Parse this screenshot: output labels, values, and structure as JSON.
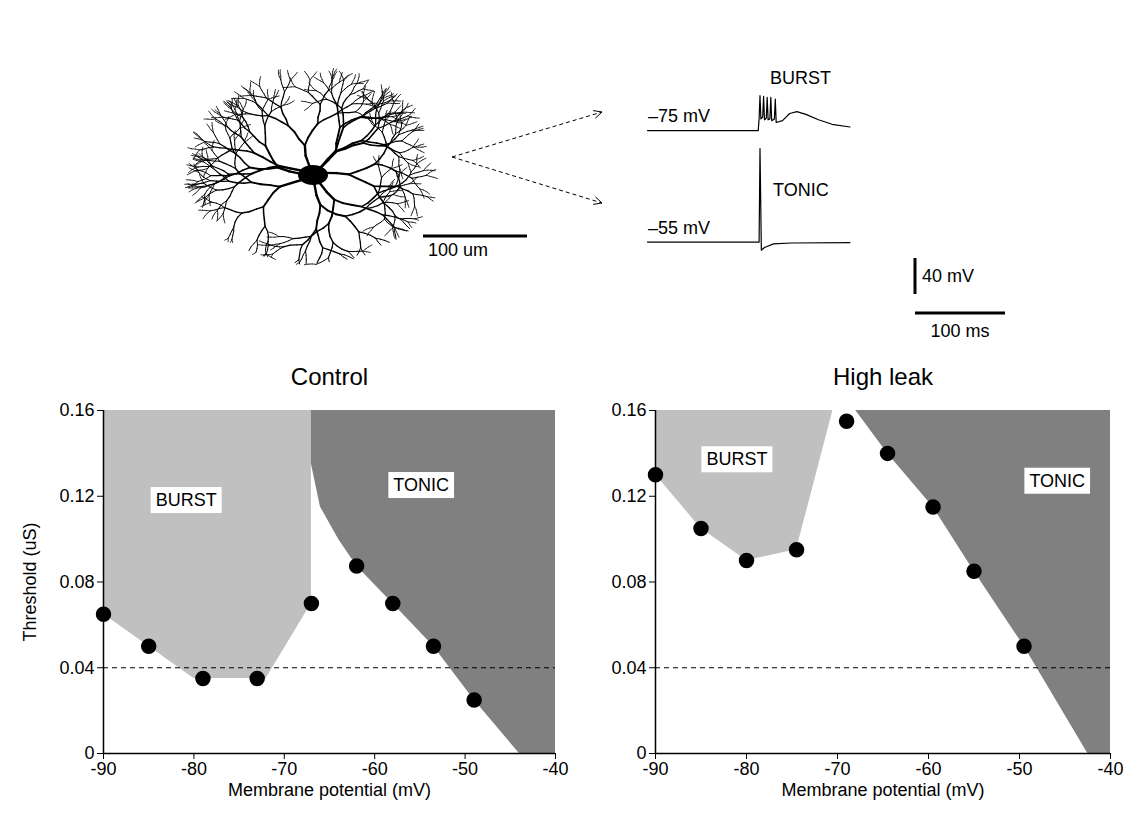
{
  "figure": {
    "neuron": {
      "scale_bar": {
        "value": 100,
        "label": "100 um"
      }
    },
    "traces": [
      {
        "label": "BURST",
        "baseline_label": "–75 mV",
        "t": [
          0,
          123,
          124,
          125,
          126,
          128,
          129,
          130,
          132,
          133,
          134,
          136,
          137,
          138,
          141,
          142,
          143,
          150,
          158,
          166,
          176,
          190,
          205,
          225
        ],
        "v": [
          -75,
          -75,
          -62,
          -36,
          -62,
          -60,
          -37,
          -63,
          -61,
          -38,
          -63,
          -62,
          -38,
          -64,
          -62,
          -40,
          -66,
          -64,
          -56,
          -54,
          -57,
          -63,
          -68,
          -71
        ]
      },
      {
        "label": "TONIC",
        "baseline_label": "–55 mV",
        "t": [
          0,
          124,
          125,
          126.5,
          130,
          140,
          160,
          225
        ],
        "v": [
          -55,
          -55,
          49,
          -64,
          -61,
          -57,
          -56,
          -55.5
        ]
      }
    ],
    "scale_bars": [
      {
        "value": 40,
        "label": "40 mV"
      },
      {
        "value": 100,
        "label": "100 ms"
      }
    ]
  },
  "chart_data": [
    {
      "type": "scatter",
      "title": "Control",
      "xlabel": "Membrane potential (mV)",
      "ylabel": "Threshold (uS)",
      "x": [
        -90,
        -85,
        -79,
        -73,
        -67,
        -62,
        -58,
        -53.5,
        -49
      ],
      "values": [
        0.065,
        0.05,
        0.035,
        0.035,
        0.07,
        0.0875,
        0.07,
        0.05,
        0.025
      ],
      "color": "#000000",
      "marker": "circle",
      "xlim": [
        -90,
        -40
      ],
      "xticks": [
        -90,
        -80,
        -70,
        -60,
        -50,
        -40
      ],
      "ylim": [
        0,
        0.16
      ],
      "yticks": [
        0,
        0.04,
        0.08,
        0.12,
        0.16
      ],
      "grid": false,
      "hlines": [
        {
          "value": 0.04,
          "line_style": "dashed"
        }
      ],
      "regions": [
        {
          "label": "BURST",
          "color": "#c0c0c0",
          "upper": 0.16,
          "x": [
            -90,
            -85,
            -80,
            -72,
            -67
          ],
          "y": [
            0.065,
            0.05,
            0.035,
            0.035,
            0.07
          ],
          "label_x": -80.8,
          "label_y": 0.118
        },
        {
          "label": "TONIC",
          "color": "#808080",
          "upper": 0.16,
          "x": [
            -67,
            -67,
            -66,
            -64,
            -62,
            -58,
            -53.5,
            -49,
            -44,
            -40
          ],
          "y": [
            0.16,
            0.135,
            0.115,
            0.1,
            0.0875,
            0.07,
            0.05,
            0.025,
            0,
            0
          ],
          "label_x": -54.8,
          "label_y": 0.125
        }
      ]
    },
    {
      "type": "scatter",
      "title": "High leak",
      "xlabel": "Membrane potential (mV)",
      "x": [
        -90,
        -85,
        -80,
        -74.5,
        -69,
        -64.5,
        -59.5,
        -55,
        -49.5
      ],
      "values": [
        0.13,
        0.105,
        0.09,
        0.095,
        0.155,
        0.14,
        0.115,
        0.085,
        0.05
      ],
      "color": "#000000",
      "marker": "circle",
      "xlim": [
        -90,
        -40
      ],
      "xticks": [
        -90,
        -80,
        -70,
        -60,
        -50,
        -40
      ],
      "ylim": [
        0,
        0.16
      ],
      "yticks": [
        0,
        0.04,
        0.08,
        0.12,
        0.16
      ],
      "grid": false,
      "hlines": [
        {
          "value": 0.04,
          "line_style": "dashed"
        }
      ],
      "regions": [
        {
          "label": "BURST",
          "color": "#c0c0c0",
          "upper": 0.16,
          "x": [
            -90,
            -85,
            -80,
            -74.5,
            -70.5
          ],
          "y": [
            0.13,
            0.105,
            0.09,
            0.095,
            0.16
          ],
          "label_x": -81,
          "label_y": 0.137
        },
        {
          "label": "TONIC",
          "color": "#808080",
          "upper": 0.16,
          "x": [
            -68,
            -64.5,
            -59.5,
            -55,
            -49.5,
            -42.5,
            -40
          ],
          "y": [
            0.16,
            0.14,
            0.115,
            0.085,
            0.05,
            0,
            0
          ],
          "label_x": -45.8,
          "label_y": 0.127
        }
      ]
    }
  ]
}
